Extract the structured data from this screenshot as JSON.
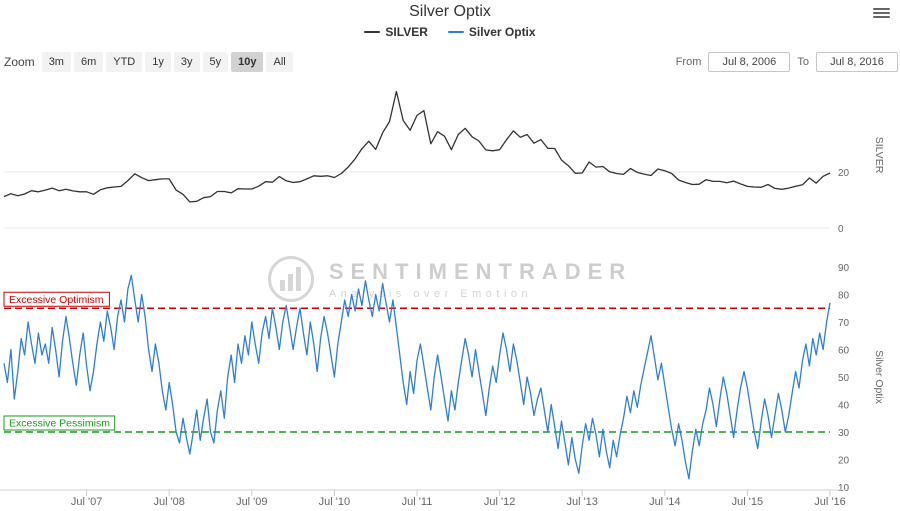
{
  "header": {
    "title": "Silver Optix",
    "menu_icon": "hamburger-icon"
  },
  "legend": [
    {
      "label": "SILVER",
      "color": "#333333"
    },
    {
      "label": "Silver Optix",
      "color": "#2f7ed8"
    }
  ],
  "range_selector": {
    "zoom_label": "Zoom",
    "buttons": [
      {
        "label": "3m"
      },
      {
        "label": "6m"
      },
      {
        "label": "YTD"
      },
      {
        "label": "1y"
      },
      {
        "label": "3y"
      },
      {
        "label": "5y"
      },
      {
        "label": "10y",
        "selected": true
      },
      {
        "label": "All"
      }
    ],
    "from_label": "From",
    "from_value": "Jul 8, 2006",
    "to_label": "To",
    "to_value": "Jul 8, 2016"
  },
  "watermark": {
    "brand": "SENTIMENTRADER",
    "tagline": "Analysis over Emotion",
    "logo_icon": "circle-bars-logo-icon"
  },
  "chart_data": {
    "type": "line",
    "title": "Silver Optix",
    "x_axis": {
      "labels": [
        "Jul '07",
        "Jul '08",
        "Jul '09",
        "Jul '10",
        "Jul '11",
        "Jul '12",
        "Jul '13",
        "Jul '14",
        "Jul '15",
        "Jul '16"
      ],
      "positions": [
        0.1,
        0.2,
        0.3,
        0.4,
        0.5,
        0.6,
        0.7,
        0.8,
        0.9,
        1.0
      ],
      "range_start": "Jul 2006",
      "range_end": "Jul 2016"
    },
    "panels": [
      {
        "name": "silver",
        "axis_title": "SILVER",
        "color": "#333333",
        "ylim": [
          0,
          52
        ],
        "ticks": [
          20,
          0
        ],
        "values": [
          11.2,
          12.2,
          11.5,
          12.1,
          13.3,
          12.9,
          13.5,
          14.2,
          13.3,
          13.8,
          13.2,
          12.9,
          12.9,
          12.0,
          13.6,
          14.3,
          14.6,
          14.8,
          16.9,
          19.3,
          17.9,
          16.9,
          17.2,
          17.5,
          17.5,
          13.5,
          12.0,
          9.3,
          9.5,
          10.8,
          11.2,
          13.0,
          13.0,
          12.5,
          14.0,
          13.9,
          13.9,
          14.9,
          16.5,
          16.3,
          18.3,
          16.8,
          16.2,
          16.5,
          17.5,
          18.6,
          18.4,
          18.6,
          18.0,
          19.4,
          21.7,
          24.6,
          28.2,
          30.9,
          28.0,
          33.9,
          37.9,
          48.6,
          38.3,
          34.8,
          40.1,
          41.8,
          30.0,
          34.3,
          32.7,
          27.9,
          33.3,
          35.5,
          32.5,
          31.0,
          27.8,
          27.5,
          27.9,
          31.4,
          34.6,
          32.3,
          33.3,
          30.2,
          31.5,
          28.4,
          28.3,
          24.2,
          22.2,
          19.5,
          19.6,
          23.5,
          21.7,
          21.9,
          20.0,
          19.4,
          19.1,
          21.2,
          19.8,
          19.2,
          18.7,
          21.0,
          20.4,
          19.4,
          17.1,
          16.2,
          15.5,
          15.6,
          17.2,
          16.6,
          16.6,
          16.1,
          16.7,
          15.7,
          14.8,
          14.6,
          14.5,
          15.5,
          14.1,
          13.8,
          14.2,
          14.9,
          15.4,
          17.8,
          16.0,
          18.4,
          19.6
        ]
      },
      {
        "name": "optix",
        "axis_title": "Silver Optix",
        "color": "#2f7ed8",
        "ylim": [
          10,
          90
        ],
        "ticks": [
          90,
          80,
          70,
          60,
          50,
          40,
          30,
          20,
          10
        ],
        "thresholds": [
          {
            "label": "Excessive Optimism",
            "value": 75,
            "color": "#cc0000"
          },
          {
            "label": "Excessive Pessimism",
            "value": 30,
            "color": "#1a9a1a"
          }
        ],
        "values": [
          55,
          48,
          60,
          42,
          52,
          64,
          58,
          70,
          62,
          55,
          66,
          58,
          62,
          55,
          68,
          60,
          50,
          63,
          72,
          64,
          55,
          47,
          58,
          66,
          54,
          45,
          52,
          62,
          70,
          63,
          74,
          68,
          60,
          72,
          78,
          70,
          82,
          87,
          78,
          70,
          80,
          72,
          60,
          52,
          62,
          55,
          45,
          38,
          48,
          40,
          30,
          26,
          35,
          28,
          22,
          30,
          38,
          27,
          35,
          42,
          30,
          26,
          38,
          45,
          35,
          50,
          58,
          48,
          62,
          55,
          65,
          58,
          70,
          62,
          55,
          66,
          72,
          64,
          75,
          68,
          60,
          70,
          76,
          68,
          60,
          68,
          75,
          66,
          58,
          70,
          62,
          52,
          64,
          72,
          66,
          58,
          50,
          62,
          70,
          78,
          72,
          80,
          74,
          82,
          76,
          85,
          78,
          72,
          80,
          74,
          84,
          77,
          70,
          78,
          68,
          58,
          48,
          40,
          52,
          44,
          56,
          62,
          54,
          46,
          38,
          50,
          58,
          50,
          42,
          34,
          45,
          38,
          48,
          56,
          64,
          58,
          50,
          60,
          52,
          44,
          36,
          46,
          54,
          48,
          58,
          66,
          60,
          52,
          62,
          56,
          48,
          40,
          50,
          44,
          36,
          42,
          46,
          38,
          30,
          40,
          32,
          24,
          34,
          26,
          18,
          28,
          20,
          15,
          25,
          33,
          27,
          35,
          29,
          21,
          31,
          23,
          17,
          27,
          21,
          29,
          35,
          43,
          37,
          45,
          39,
          47,
          53,
          59,
          65,
          57,
          49,
          55,
          47,
          39,
          31,
          25,
          33,
          27,
          19,
          13,
          23,
          31,
          25,
          33,
          38,
          46,
          40,
          32,
          42,
          50,
          44,
          36,
          28,
          38,
          46,
          52,
          46,
          38,
          30,
          24,
          34,
          42,
          36,
          28,
          36,
          44,
          38,
          30,
          36,
          44,
          52,
          46,
          56,
          62,
          54,
          64,
          58,
          66,
          60,
          70,
          77
        ]
      }
    ]
  }
}
